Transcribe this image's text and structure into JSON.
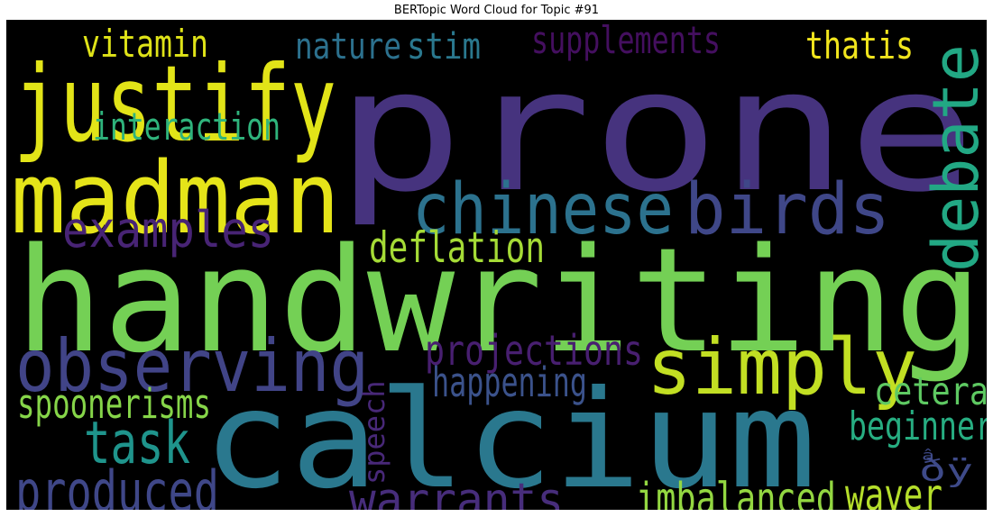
{
  "chart_data": {
    "type": "wordcloud",
    "title": "BERTopic Word Cloud for Topic #91",
    "background": "#000000",
    "colormap": "viridis",
    "words": [
      {
        "text": "prone",
        "color": "#46337e"
      },
      {
        "text": "handwriting",
        "color": "#74d055"
      },
      {
        "text": "calcium",
        "color": "#2a788e"
      },
      {
        "text": "justify",
        "color": "#e2e418"
      },
      {
        "text": "madman",
        "color": "#e5e419"
      },
      {
        "text": "chinese",
        "color": "#2c728e"
      },
      {
        "text": "birds",
        "color": "#3f4788"
      },
      {
        "text": "debate",
        "color": "#22a884"
      },
      {
        "text": "observing",
        "color": "#414487"
      },
      {
        "text": "simply",
        "color": "#c2df23"
      },
      {
        "text": "examples",
        "color": "#482475"
      },
      {
        "text": "deflation",
        "color": "#a5db36"
      },
      {
        "text": "projections",
        "color": "#481f70"
      },
      {
        "text": "task",
        "color": "#1f948c"
      },
      {
        "text": "produced",
        "color": "#3f4788"
      },
      {
        "text": "warrants",
        "color": "#472d7b"
      },
      {
        "text": "imbalanced",
        "color": "#93d741"
      },
      {
        "text": "waver",
        "color": "#b5de2b"
      },
      {
        "text": "spoonerisms",
        "color": "#86d549"
      },
      {
        "text": "happening",
        "color": "#3b528b"
      },
      {
        "text": "cetera",
        "color": "#5ec962"
      },
      {
        "text": "beginner",
        "color": "#27ad81"
      },
      {
        "text": "speech",
        "color": "#482878"
      },
      {
        "text": "vitamin",
        "color": "#dfe318"
      },
      {
        "text": "nature",
        "color": "#2c718e"
      },
      {
        "text": "stim",
        "color": "#2a788e"
      },
      {
        "text": "supplements",
        "color": "#440f5f"
      },
      {
        "text": "thatis",
        "color": "#f1e51d"
      },
      {
        "text": "interaction",
        "color": "#2fb47c"
      },
      {
        "text": "ðÿ",
        "color": "#3e4a89"
      },
      {
        "text": "â",
        "color": "#3e4a89"
      }
    ]
  }
}
